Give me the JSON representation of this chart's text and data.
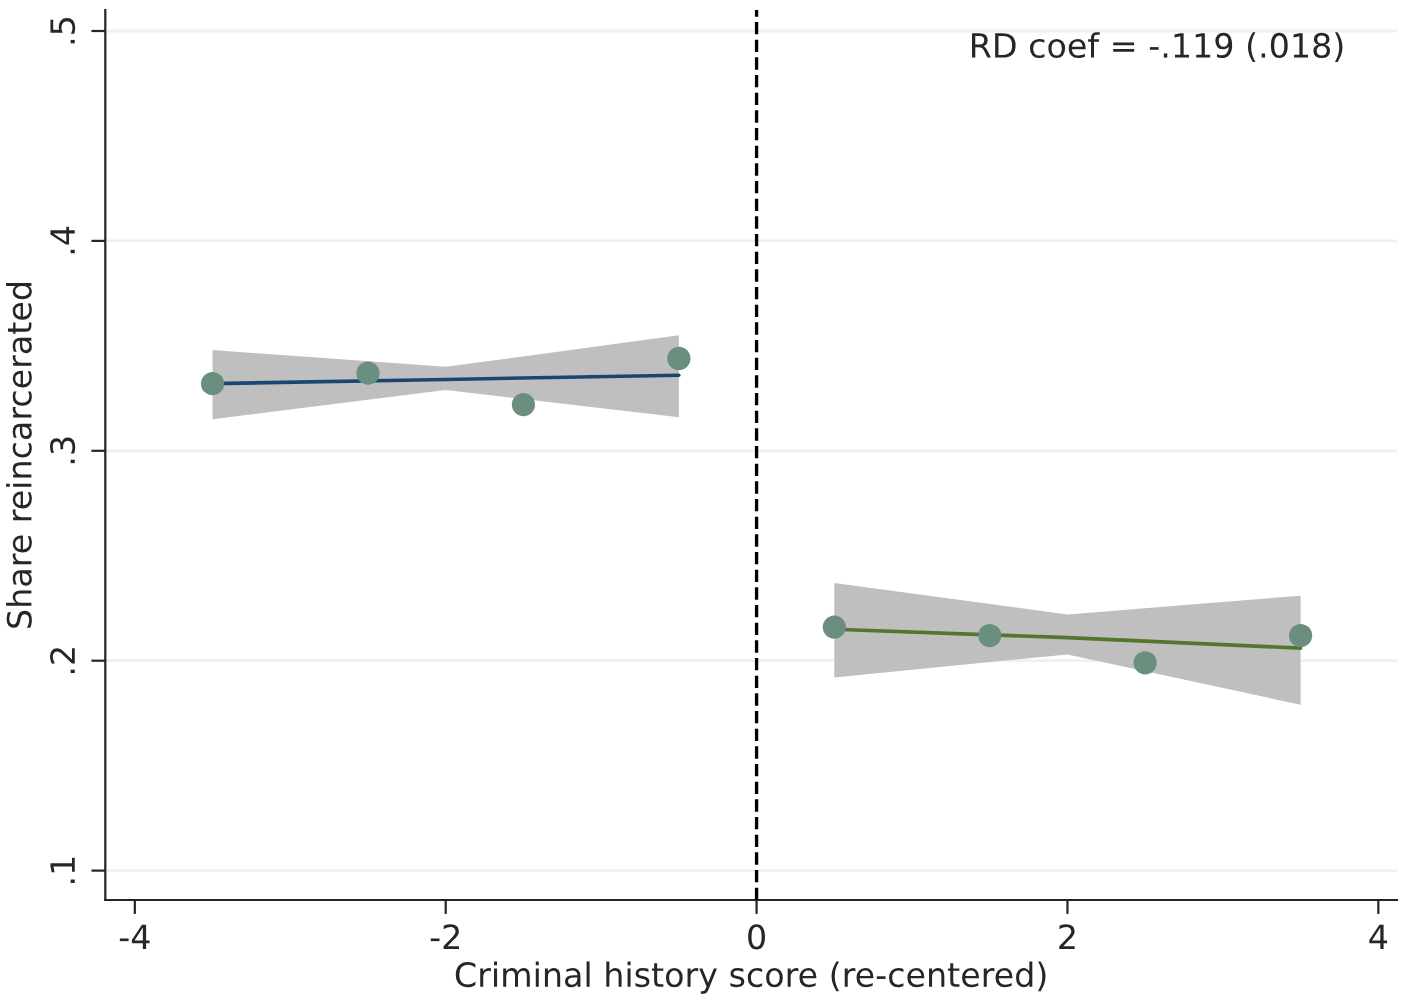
{
  "chart_data": {
    "type": "scatter",
    "xlabel": "Criminal history score (re-centered)",
    "ylabel": "Share reincarcerated",
    "series": [
      {
        "type": "line",
        "color": "#1a476f",
        "x": [
          -3.5,
          -2,
          -0.5
        ],
        "values": [
          0.332,
          0.334,
          0.336
        ],
        "lower": [
          0.315,
          0.329,
          0.316
        ],
        "upper": [
          0.348,
          0.34,
          0.355
        ],
        "marker": "none"
      },
      {
        "type": "line",
        "color": "#55752f",
        "x": [
          0.5,
          2,
          3.5
        ],
        "values": [
          0.215,
          0.211,
          0.206
        ],
        "lower": [
          0.192,
          0.203,
          0.179
        ],
        "upper": [
          0.237,
          0.222,
          0.231
        ],
        "marker": "none"
      },
      {
        "color": "#6a8f7f",
        "x": [
          -3.5,
          -2.5,
          -1.5,
          -0.5,
          0.5,
          1.5,
          2.5,
          3.5
        ],
        "values": [
          0.332,
          0.337,
          0.322,
          0.344,
          0.216,
          0.212,
          0.199,
          0.212
        ]
      }
    ],
    "xlim": [
      -4.19,
      4.12
    ],
    "ylim": [
      0.086,
      0.51
    ],
    "xticks": [
      {
        "value": -4,
        "label": "-4"
      },
      {
        "value": -2,
        "label": "-2"
      },
      0,
      2,
      4
    ],
    "yticks": [
      {
        "value": 0.1,
        "label": ".1"
      },
      {
        "value": 0.2,
        "label": ".2"
      },
      {
        "value": 0.3,
        "label": ".3"
      },
      {
        "value": 0.4,
        "label": ".4"
      },
      {
        "value": 0.5,
        "label": ".5"
      }
    ],
    "grid": "y",
    "marker": "circle",
    "legend": false,
    "ref_lines": [
      {
        "axis": "x",
        "value": 0,
        "color": "#000000",
        "line_style": "dashed"
      }
    ],
    "annotations": [
      "RD coef = -.119 (.018)"
    ]
  }
}
